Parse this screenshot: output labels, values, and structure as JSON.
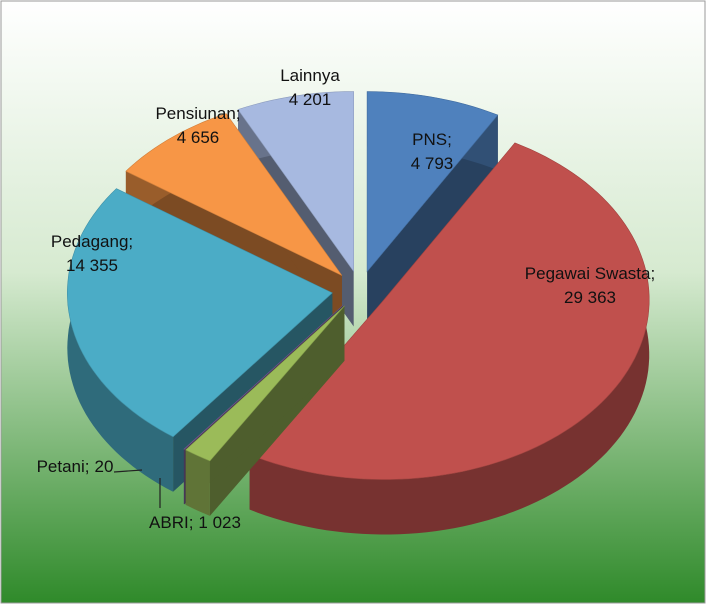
{
  "chart_data": {
    "type": "pie",
    "categories": [
      "PNS;",
      "Pegawai Swasta;",
      "ABRI;",
      "Petani;",
      "Pedagang;",
      "Pensiunan;",
      "Lainnya"
    ],
    "values": [
      4793,
      29363,
      1023,
      20,
      14355,
      4656,
      4201
    ],
    "value_labels": [
      "4 793",
      "29 363",
      "1 023",
      "20",
      "14 355",
      "4 656",
      "4 201"
    ],
    "colors": [
      "#4f81bd",
      "#c0504d",
      "#9bbb59",
      "#8064a2",
      "#4bacc6",
      "#f79646",
      "#a7b9e0"
    ]
  }
}
